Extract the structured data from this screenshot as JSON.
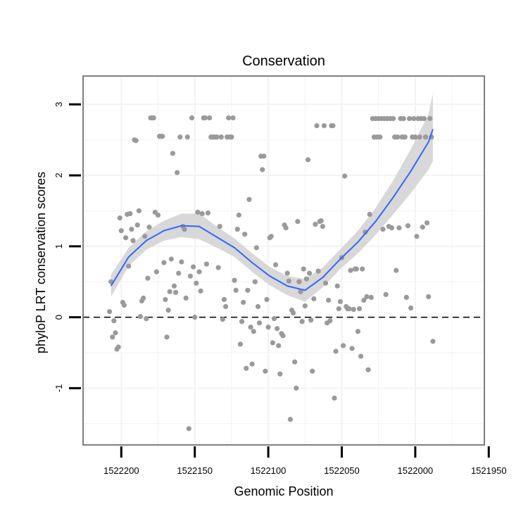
{
  "chart_data": {
    "type": "scatter",
    "title": "Conservation",
    "xlabel": "Genomic Position",
    "ylabel": "phyloP LRT conservation scores",
    "x_axis_reversed": true,
    "xlim": [
      1522226,
      1521953
    ],
    "ylim": [
      -1.8,
      3.4
    ],
    "x_ticks": [
      {
        "value": 1522200,
        "label": "1522200"
      },
      {
        "value": 1522150,
        "label": "1522150"
      },
      {
        "value": 1522100,
        "label": "1522100"
      },
      {
        "value": 1522050,
        "label": "1522050"
      },
      {
        "value": 1522000,
        "label": "1522000"
      },
      {
        "value": 1521950,
        "label": "1521950"
      }
    ],
    "y_ticks": [
      {
        "value": -1,
        "label": "-1"
      },
      {
        "value": 0,
        "label": "0"
      },
      {
        "value": 1,
        "label": "1"
      },
      {
        "value": 2,
        "label": "2"
      },
      {
        "value": 3,
        "label": "3"
      }
    ],
    "reference_line": {
      "y": 0,
      "style": "dashed"
    },
    "colors": {
      "points": "#9a9a9a",
      "smooth_line": "#3366ff",
      "ribbon": "#d4d4d4",
      "panel_border": "#7f7f7f",
      "grid": "#f2f2f2",
      "reference_line": "#000000"
    },
    "series": [
      {
        "name": "phyloP scores",
        "points": [
          [
            1522208,
            0.08
          ],
          [
            1522207,
            0.5
          ],
          [
            1522206,
            -0.28
          ],
          [
            1522205,
            -0.05
          ],
          [
            1522204,
            -0.22
          ],
          [
            1522203,
            -0.45
          ],
          [
            1522202,
            -0.42
          ],
          [
            1522201,
            1.4
          ],
          [
            1522200,
            1.22
          ],
          [
            1522199,
            0.21
          ],
          [
            1522198,
            0.17
          ],
          [
            1522197,
            1.12
          ],
          [
            1522196,
            1.45
          ],
          [
            1522195,
            0.72
          ],
          [
            1522194,
            1.46
          ],
          [
            1522193,
            1.24
          ],
          [
            1522192,
            1.08
          ],
          [
            1522191,
            2.5
          ],
          [
            1522190,
            2.49
          ],
          [
            1522189,
            1.3
          ],
          [
            1522188,
            1.5
          ],
          [
            1522187,
            0.01
          ],
          [
            1522186,
            0.23
          ],
          [
            1522185,
            0.27
          ],
          [
            1522184,
            1.14
          ],
          [
            1522183,
            -0.02
          ],
          [
            1522182,
            0.55
          ],
          [
            1522181,
            1.27
          ],
          [
            1522180,
            2.81
          ],
          [
            1522179,
            2.81
          ],
          [
            1522178,
            2.81
          ],
          [
            1522177,
            1.48
          ],
          [
            1522176,
            0.64
          ],
          [
            1522175,
            1.44
          ],
          [
            1522174,
            2.55
          ],
          [
            1522173,
            2.55
          ],
          [
            1522172,
            2.55
          ],
          [
            1522171,
            0.77
          ],
          [
            1522170,
            0.25
          ],
          [
            1522169,
            -0.28
          ],
          [
            1522168,
            0.1
          ],
          [
            1522167,
            0.36
          ],
          [
            1522166,
            0.82
          ],
          [
            1522165,
            2.31
          ],
          [
            1522164,
            0.44
          ],
          [
            1522163,
            0.35
          ],
          [
            1522162,
            2.04
          ],
          [
            1522161,
            0.62
          ],
          [
            1522160,
            2.54
          ],
          [
            1522159,
            0.78
          ],
          [
            1522158,
            1.28
          ],
          [
            1522157,
            1.24
          ],
          [
            1522156,
            0.27
          ],
          [
            1522155,
            2.54
          ],
          [
            1522154,
            -1.57
          ],
          [
            1522153,
            0.58
          ],
          [
            1522152,
            2.81
          ],
          [
            1522151,
            0.71
          ],
          [
            1522150,
            0.0
          ],
          [
            1522149,
            0.48
          ],
          [
            1522148,
            1.48
          ],
          [
            1522147,
            0.64
          ],
          [
            1522146,
            0.37
          ],
          [
            1522145,
            1.46
          ],
          [
            1522144,
            2.81
          ],
          [
            1522143,
            2.81
          ],
          [
            1522142,
            0.75
          ],
          [
            1522141,
            1.47
          ],
          [
            1522140,
            2.81
          ],
          [
            1522139,
            2.54
          ],
          [
            1522138,
            2.54
          ],
          [
            1522137,
            2.54
          ],
          [
            1522136,
            2.54
          ],
          [
            1522135,
            2.54
          ],
          [
            1522134,
            0.7
          ],
          [
            1522133,
            1.28
          ],
          [
            1522132,
            2.54
          ],
          [
            1522131,
            -0.03
          ],
          [
            1522130,
            0.25
          ],
          [
            1522129,
            0.15
          ],
          [
            1522128,
            2.54
          ],
          [
            1522127,
            2.81
          ],
          [
            1522126,
            2.54
          ],
          [
            1522125,
            2.54
          ],
          [
            1522124,
            2.81
          ],
          [
            1522123,
            0.52
          ],
          [
            1522122,
            0.38
          ],
          [
            1522121,
            1.24
          ],
          [
            1522120,
            1.44
          ],
          [
            1522119,
            -0.38
          ],
          [
            1522118,
            -0.06
          ],
          [
            1522117,
            0.21
          ],
          [
            1522116,
            1.17
          ],
          [
            1522115,
            -0.72
          ],
          [
            1522114,
            0.38
          ],
          [
            1522113,
            1.66
          ],
          [
            1522112,
            -0.14
          ],
          [
            1522111,
            -0.66
          ],
          [
            1522110,
            -0.2
          ],
          [
            1522109,
            0.5
          ],
          [
            1522108,
            0.98
          ],
          [
            1522107,
            0.15
          ],
          [
            1522106,
            -0.08
          ],
          [
            1522105,
            2.27
          ],
          [
            1522104,
            2.08
          ],
          [
            1522103,
            2.27
          ],
          [
            1522102,
            -0.76
          ],
          [
            1522101,
            0.25
          ],
          [
            1522100,
            -0.14
          ],
          [
            1522099,
            1.12
          ],
          [
            1522098,
            1.14
          ],
          [
            1522097,
            -0.36
          ],
          [
            1522096,
            -0.02
          ],
          [
            1522095,
            0.74
          ],
          [
            1522094,
            -0.16
          ],
          [
            1522093,
            -0.4
          ],
          [
            1522092,
            -0.8
          ],
          [
            1522091,
            -0.23
          ],
          [
            1522090,
            -0.26
          ],
          [
            1522089,
            1.3
          ],
          [
            1522088,
            1.26
          ],
          [
            1522087,
            0.62
          ],
          [
            1522086,
            0.51
          ],
          [
            1522085,
            -1.44
          ],
          [
            1522084,
            0.1
          ],
          [
            1522083,
            0.06
          ],
          [
            1522082,
            -0.63
          ],
          [
            1522081,
            -1.0
          ],
          [
            1522080,
            1.35
          ],
          [
            1522079,
            0.5
          ],
          [
            1522078,
            0.36
          ],
          [
            1522077,
            -0.06
          ],
          [
            1522076,
            0.68
          ],
          [
            1522075,
            0.16
          ],
          [
            1522074,
            0.54
          ],
          [
            1522073,
            2.22
          ],
          [
            1522072,
            0.62
          ],
          [
            1522071,
            -0.04
          ],
          [
            1522070,
            -0.76
          ],
          [
            1522069,
            0.26
          ],
          [
            1522068,
            1.31
          ],
          [
            1522067,
            2.7
          ],
          [
            1522066,
            0.65
          ],
          [
            1522065,
            1.35
          ],
          [
            1522064,
            1.36
          ],
          [
            1522063,
            1.28
          ],
          [
            1522062,
            2.7
          ],
          [
            1522061,
            0.48
          ],
          [
            1522060,
            -0.08
          ],
          [
            1522059,
            0.24
          ],
          [
            1522058,
            -0.05
          ],
          [
            1522057,
            2.7
          ],
          [
            1522056,
            2.7
          ],
          [
            1522055,
            -1.14
          ],
          [
            1522054,
            -0.48
          ],
          [
            1522053,
            0.44
          ],
          [
            1522052,
            0.12
          ],
          [
            1522051,
            0.22
          ],
          [
            1522050,
            0.84
          ],
          [
            1522049,
            -0.4
          ],
          [
            1522048,
            1.99
          ],
          [
            1522047,
            0.15
          ],
          [
            1522046,
            0.12
          ],
          [
            1522045,
            0.12
          ],
          [
            1522044,
            0.66
          ],
          [
            1522043,
            -0.44
          ],
          [
            1522042,
            0.11
          ],
          [
            1522041,
            0.68
          ],
          [
            1522040,
            0.68
          ],
          [
            1522039,
            -0.2
          ],
          [
            1522038,
            0.12
          ],
          [
            1522037,
            -0.55
          ],
          [
            1522036,
            0.68
          ],
          [
            1522035,
            0.24
          ],
          [
            1522034,
            1.2
          ],
          [
            1522033,
            0.29
          ],
          [
            1522032,
            -0.74
          ],
          [
            1522031,
            1.45
          ],
          [
            1522030,
            0.28
          ],
          [
            1522029,
            2.8
          ],
          [
            1522028,
            2.54
          ],
          [
            1522027,
            2.8
          ],
          [
            1522026,
            2.54
          ],
          [
            1522025,
            2.8
          ],
          [
            1522024,
            2.54
          ],
          [
            1522023,
            2.8
          ],
          [
            1522022,
            1.24
          ],
          [
            1522021,
            2.8
          ],
          [
            1522020,
            0.32
          ],
          [
            1522019,
            2.8
          ],
          [
            1522018,
            1.28
          ],
          [
            1522017,
            2.8
          ],
          [
            1522016,
            1.26
          ],
          [
            1522015,
            2.8
          ],
          [
            1522014,
            2.54
          ],
          [
            1522013,
            0.66
          ],
          [
            1522012,
            2.54
          ],
          [
            1522011,
            1.26
          ],
          [
            1522010,
            2.8
          ],
          [
            1522009,
            2.54
          ],
          [
            1522008,
            2.8
          ],
          [
            1522007,
            2.54
          ],
          [
            1522006,
            0.28
          ],
          [
            1522005,
            1.29
          ],
          [
            1522004,
            2.8
          ],
          [
            1522003,
            0.13
          ],
          [
            1522002,
            2.54
          ],
          [
            1522001,
            2.8
          ],
          [
            1522000,
            2.54
          ],
          [
            1521999,
            1.14
          ],
          [
            1521998,
            2.8
          ],
          [
            1521997,
            2.54
          ],
          [
            1521996,
            2.8
          ],
          [
            1521995,
            1.27
          ],
          [
            1521994,
            2.8
          ],
          [
            1521993,
            2.54
          ],
          [
            1521992,
            1.33
          ],
          [
            1521991,
            0.29
          ],
          [
            1521990,
            2.8
          ],
          [
            1521989,
            2.54
          ],
          [
            1521988,
            -0.34
          ]
        ]
      }
    ],
    "smooth": {
      "method": "loess",
      "x": [
        1522207,
        1522195,
        1522183,
        1522171,
        1522159,
        1522147,
        1522135,
        1522123,
        1522111,
        1522099,
        1522087,
        1522075,
        1522063,
        1522051,
        1522039,
        1522027,
        1522015,
        1522003,
        1521991,
        1521988
      ],
      "y": [
        0.44,
        0.85,
        1.08,
        1.22,
        1.29,
        1.28,
        1.13,
        0.98,
        0.77,
        0.58,
        0.44,
        0.38,
        0.56,
        0.82,
        1.06,
        1.35,
        1.69,
        2.06,
        2.47,
        2.65
      ],
      "lower": [
        0.29,
        0.72,
        0.95,
        1.08,
        1.13,
        1.1,
        0.98,
        0.85,
        0.64,
        0.45,
        0.31,
        0.22,
        0.42,
        0.68,
        0.9,
        1.16,
        1.45,
        1.75,
        2.08,
        2.2
      ],
      "upper": [
        0.6,
        0.98,
        1.21,
        1.36,
        1.46,
        1.46,
        1.28,
        1.11,
        0.9,
        0.71,
        0.58,
        0.54,
        0.7,
        0.96,
        1.22,
        1.54,
        1.93,
        2.37,
        2.86,
        3.15
      ]
    }
  }
}
